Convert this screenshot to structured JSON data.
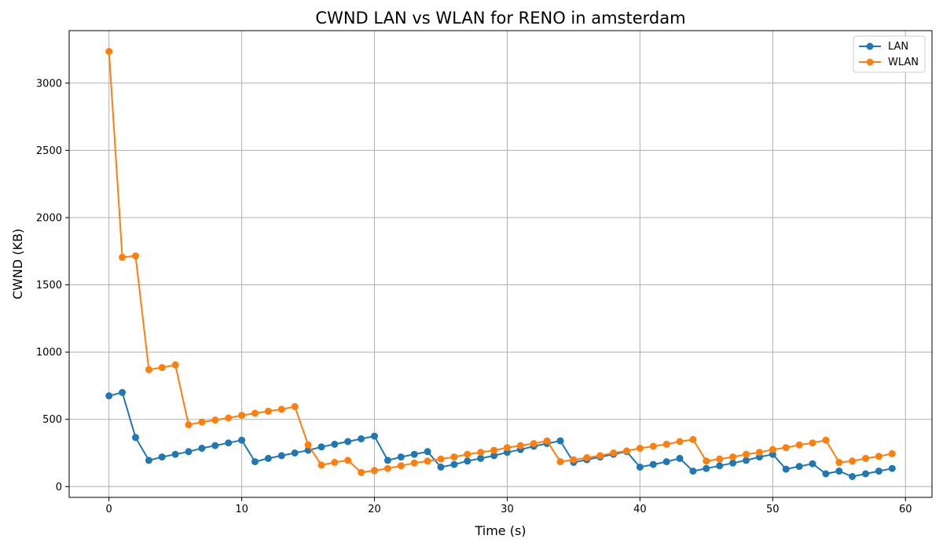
{
  "chart_data": {
    "type": "line",
    "title": "CWND LAN vs WLAN for RENO in amsterdam",
    "xlabel": "Time (s)",
    "ylabel": "CWND (KB)",
    "xlim": [
      -3,
      62
    ],
    "ylim": [
      -80,
      3390
    ],
    "x_ticks": [
      0,
      10,
      20,
      30,
      40,
      50,
      60
    ],
    "y_ticks": [
      0,
      500,
      1000,
      1500,
      2000,
      2500,
      3000
    ],
    "grid": true,
    "legend_position": "top-right",
    "x": [
      0,
      1,
      2,
      3,
      4,
      5,
      6,
      7,
      8,
      9,
      10,
      11,
      12,
      13,
      14,
      15,
      16,
      17,
      18,
      19,
      20,
      21,
      22,
      23,
      24,
      25,
      26,
      27,
      28,
      29,
      30,
      31,
      32,
      33,
      34,
      35,
      36,
      37,
      38,
      39,
      40,
      41,
      42,
      43,
      44,
      45,
      46,
      47,
      48,
      49,
      50,
      51,
      52,
      53,
      54,
      55,
      56,
      57,
      58,
      59
    ],
    "series": [
      {
        "name": "LAN",
        "color": "#1f77b4",
        "values": [
          675,
          700,
          365,
          195,
          220,
          240,
          260,
          285,
          305,
          325,
          345,
          185,
          210,
          230,
          250,
          270,
          295,
          315,
          335,
          355,
          375,
          195,
          220,
          240,
          260,
          145,
          165,
          190,
          210,
          230,
          255,
          275,
          300,
          320,
          340,
          180,
          200,
          220,
          240,
          260,
          145,
          165,
          185,
          210,
          115,
          135,
          155,
          175,
          195,
          220,
          240,
          130,
          150,
          170,
          95,
          115,
          75,
          95,
          115,
          135
        ]
      },
      {
        "name": "WLAN",
        "color": "#ff7f0e",
        "values": [
          3235,
          1705,
          1715,
          870,
          885,
          905,
          460,
          480,
          495,
          510,
          530,
          545,
          560,
          575,
          595,
          310,
          160,
          180,
          195,
          105,
          120,
          135,
          155,
          175,
          190,
          205,
          220,
          240,
          255,
          270,
          290,
          305,
          320,
          340,
          185,
          200,
          215,
          230,
          250,
          265,
          285,
          300,
          315,
          335,
          350,
          190,
          205,
          220,
          240,
          255,
          275,
          290,
          310,
          325,
          345,
          180,
          190,
          210,
          225,
          245
        ]
      }
    ]
  }
}
